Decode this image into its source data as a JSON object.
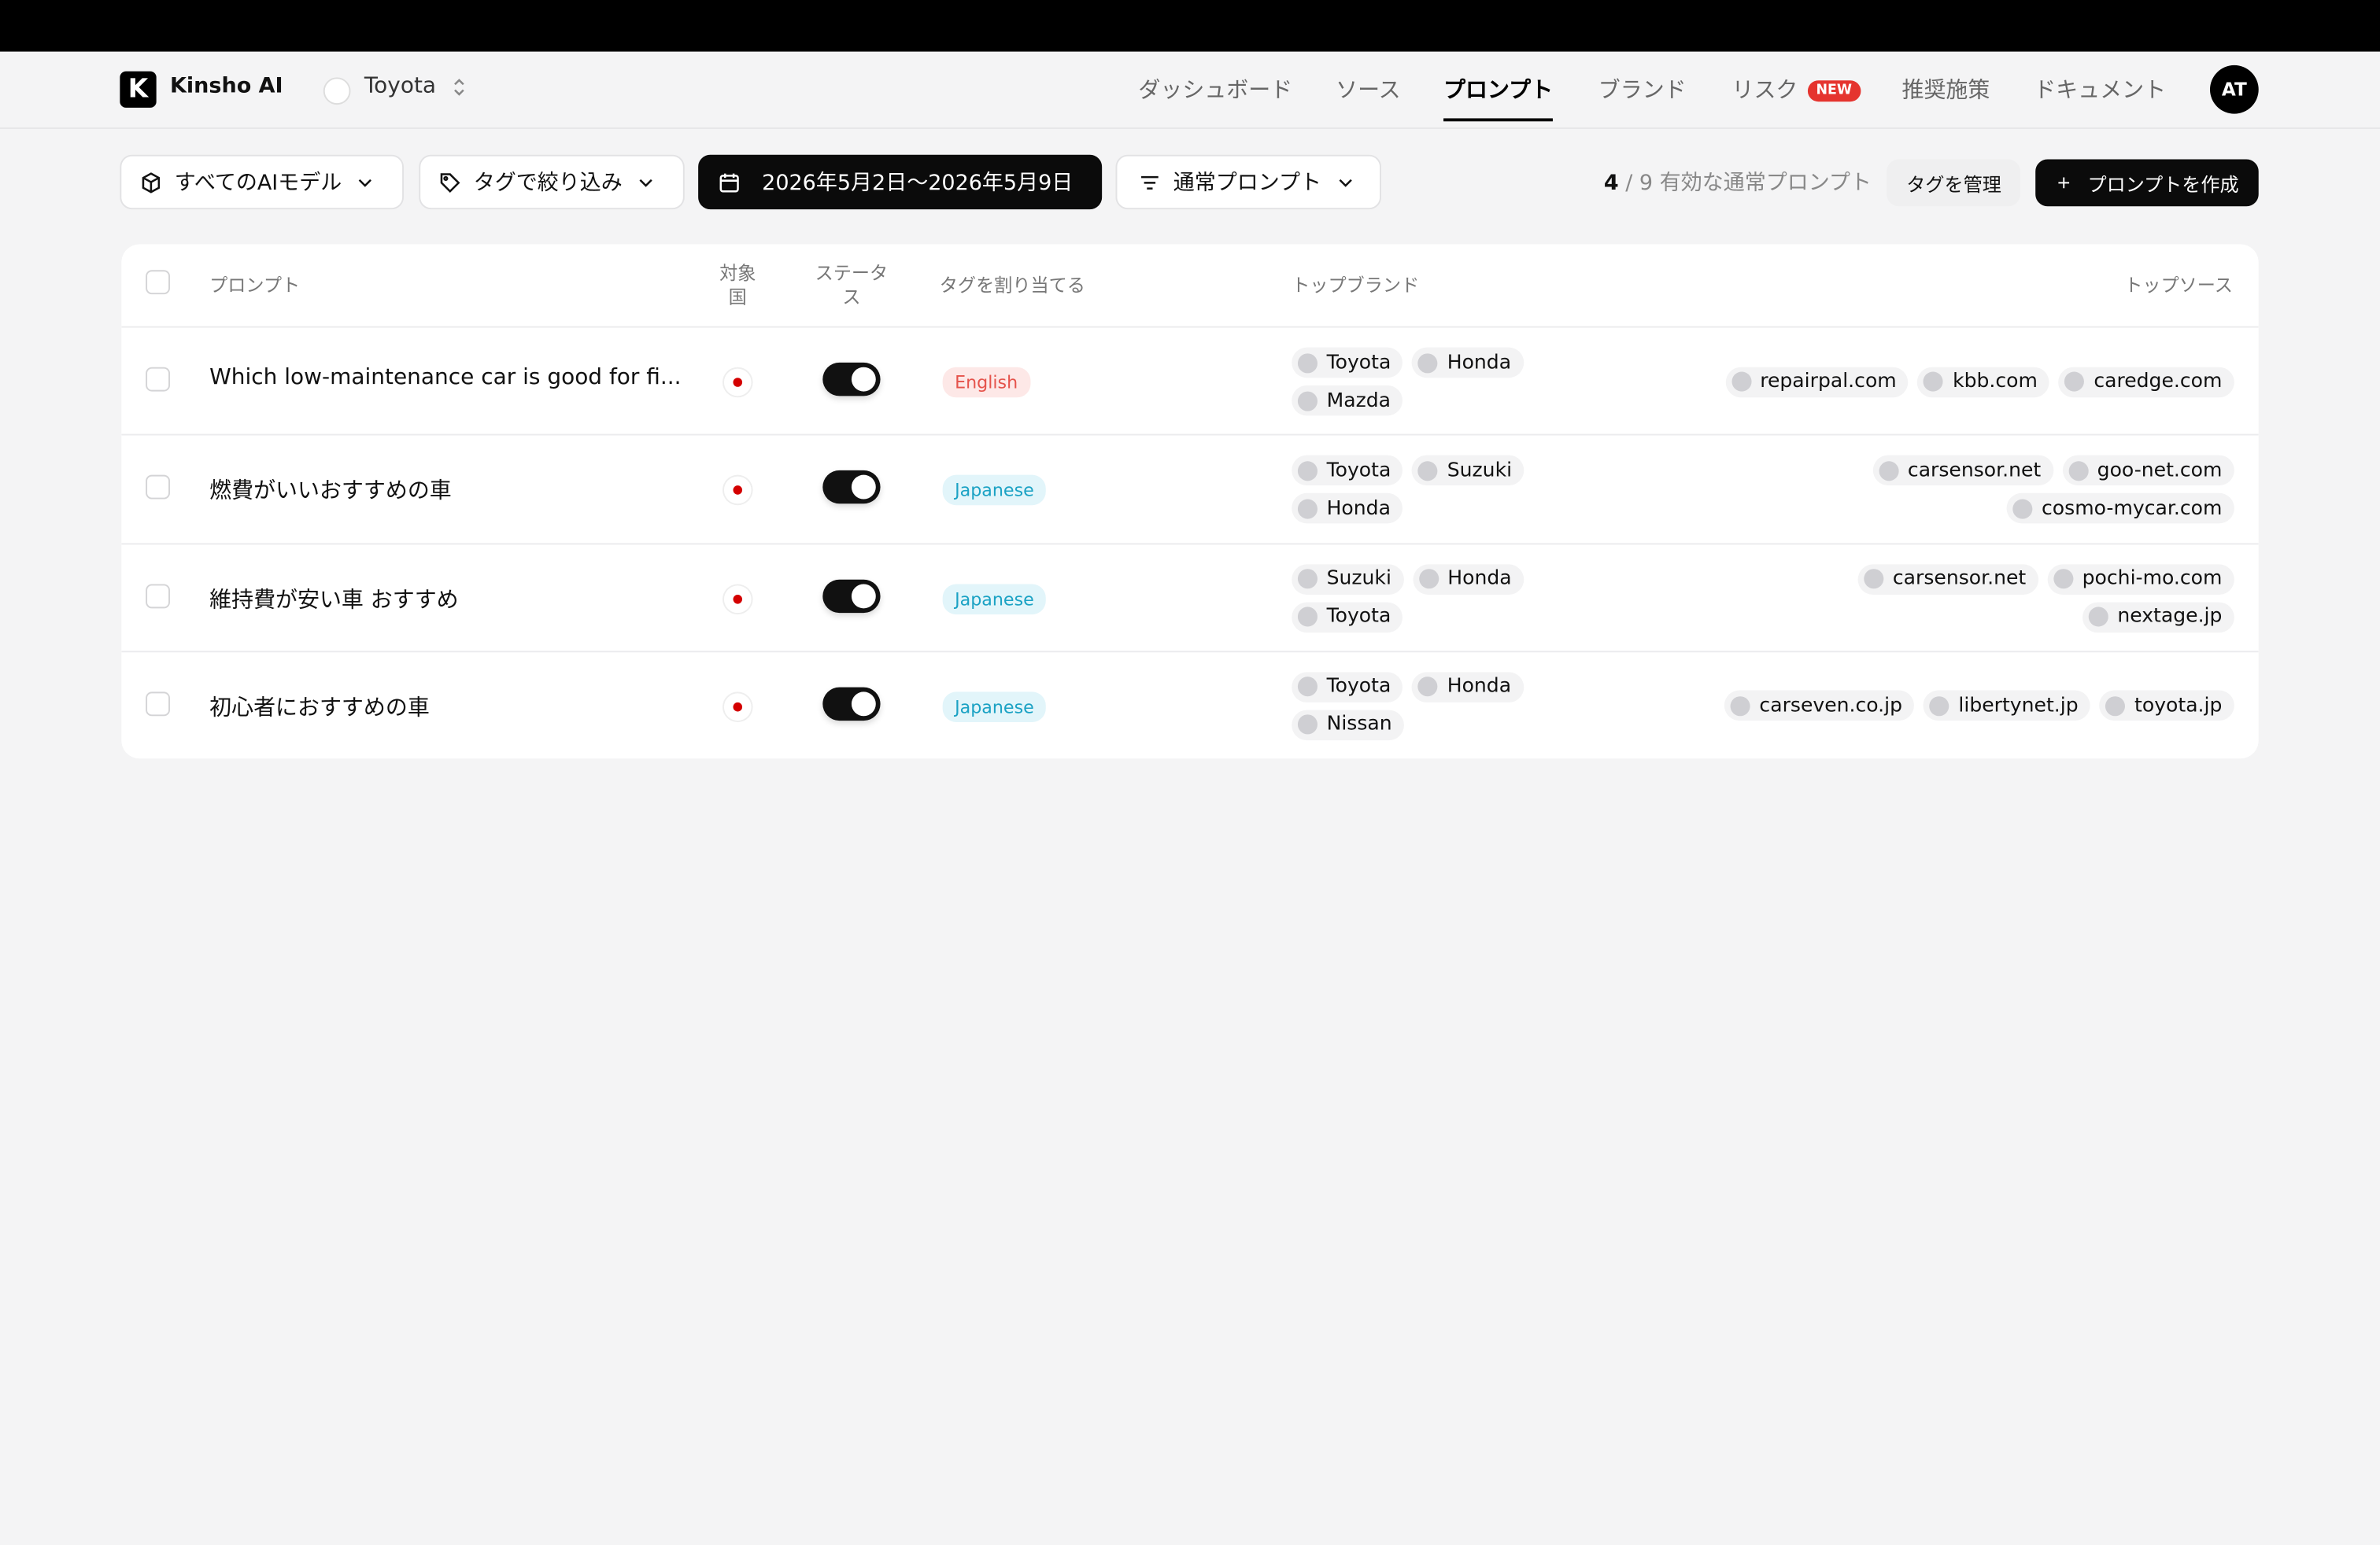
{
  "header": {
    "brand": "Kinsho AI",
    "logo_letter": "K",
    "workspace": "Toyota",
    "nav": [
      {
        "label": "ダッシュボード",
        "active": false
      },
      {
        "label": "ソース",
        "active": false
      },
      {
        "label": "プロンプト",
        "active": true
      },
      {
        "label": "ブランド",
        "active": false
      },
      {
        "label": "リスク",
        "active": false,
        "badge": "NEW"
      },
      {
        "label": "推奨施策",
        "active": false
      },
      {
        "label": "ドキュメント",
        "active": false
      }
    ],
    "avatar": "AT"
  },
  "toolbar": {
    "model_filter": "すべてのAIモデル",
    "tag_filter": "タグで絞り込み",
    "date_range": "2026年5月2日〜2026年5月9日",
    "prompt_type": "通常プロンプト",
    "count_active": 4,
    "count_separator": "/",
    "count_total": 9,
    "count_label": "有効な通常プロンプト",
    "manage_tags": "タグを管理",
    "create_prompt": "プロンプトを作成"
  },
  "table": {
    "columns": [
      "プロンプト",
      "対象国",
      "ステータス",
      "タグを割り当てる",
      "トップブランド",
      "トップソース"
    ],
    "rows": [
      {
        "prompt": "Which low-maintenance car is good for fi...",
        "status": true,
        "tag": "English",
        "tag_color": "#e5534b",
        "tag_bg": "#fde8e7",
        "brands": [
          "Toyota",
          "Honda",
          "Mazda"
        ],
        "sources": [
          "repairpal.com",
          "kbb.com",
          "caredge.com"
        ]
      },
      {
        "prompt": "燃費がいいおすすめの車",
        "status": true,
        "tag": "Japanese",
        "tag_color": "#1ba2c4",
        "tag_bg": "#e2f5fa",
        "brands": [
          "Toyota",
          "Suzuki",
          "Honda"
        ],
        "sources": [
          "carsensor.net",
          "goo-net.com",
          "cosmo-mycar.com"
        ]
      },
      {
        "prompt": "維持費が安い車 おすすめ",
        "status": true,
        "tag": "Japanese",
        "tag_color": "#1ba2c4",
        "tag_bg": "#e2f5fa",
        "brands": [
          "Suzuki",
          "Honda",
          "Toyota"
        ],
        "sources": [
          "carsensor.net",
          "pochi-mo.com",
          "nextage.jp"
        ]
      },
      {
        "prompt": "初心者におすすめの車",
        "status": true,
        "tag": "Japanese",
        "tag_color": "#1ba2c4",
        "tag_bg": "#e2f5fa",
        "brands": [
          "Toyota",
          "Honda",
          "Nissan"
        ],
        "sources": [
          "carseven.co.jp",
          "libertynet.jp",
          "toyota.jp"
        ]
      }
    ]
  }
}
